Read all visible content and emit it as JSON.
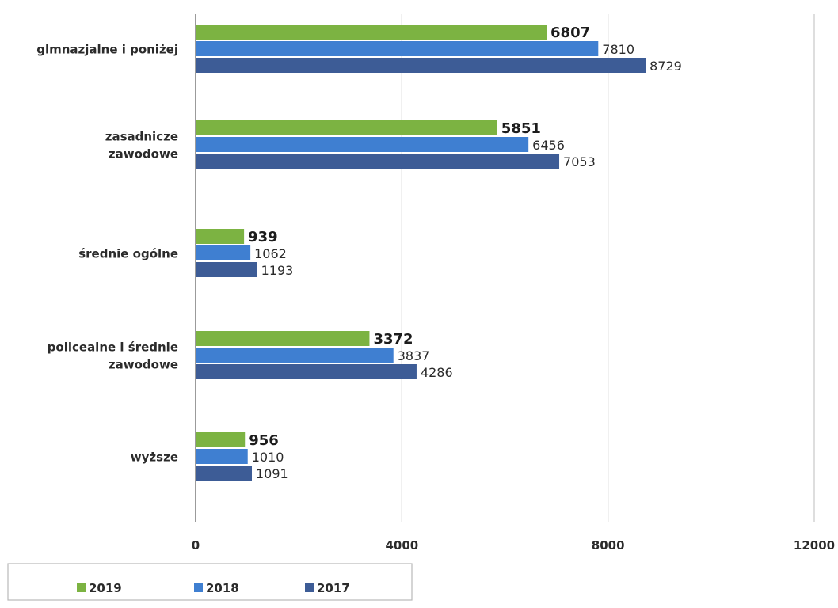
{
  "chart_data": {
    "type": "bar",
    "orientation": "horizontal",
    "categories": [
      [
        "glmnazjalne i poniżej"
      ],
      [
        "zasadnicze",
        "zawodowe"
      ],
      [
        "średnie ogólne"
      ],
      [
        "policealne i średnie",
        "zawodowe"
      ],
      [
        "wyższe"
      ]
    ],
    "series": [
      {
        "name": "2019",
        "color": "#7cb342",
        "values": [
          6807,
          5851,
          939,
          3372,
          956
        ]
      },
      {
        "name": "2018",
        "color": "#3f7fd1",
        "values": [
          7810,
          6456,
          1062,
          3837,
          1010
        ]
      },
      {
        "name": "2017",
        "color": "#3d5c96",
        "values": [
          8729,
          7053,
          1193,
          4286,
          1091
        ]
      }
    ],
    "xlim": [
      0,
      12000
    ],
    "xticks": [
      "0",
      "4000",
      "8000",
      "12000"
    ],
    "grid": true,
    "legend_position": "bottom-left"
  }
}
